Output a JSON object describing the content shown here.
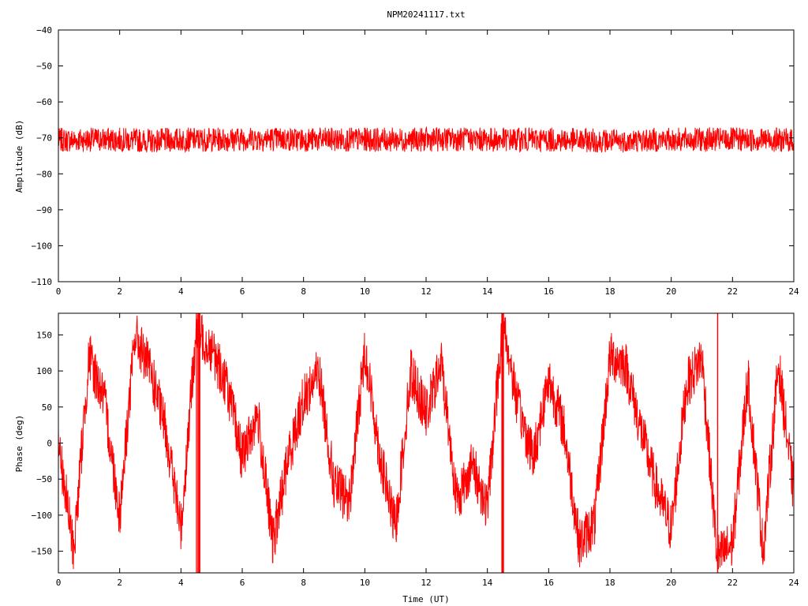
{
  "chart_data": [
    {
      "type": "line",
      "title": "NPM20241117.txt",
      "xlabel": "",
      "ylabel": "Amplitude (dB)",
      "xlim": [
        0,
        24
      ],
      "ylim": [
        -110,
        -40
      ],
      "xticks": [
        0,
        2,
        4,
        6,
        8,
        10,
        12,
        14,
        16,
        18,
        20,
        22,
        24
      ],
      "yticks": [
        -110,
        -100,
        -90,
        -80,
        -70,
        -60,
        -50,
        -40
      ],
      "xtick_labels": [
        "0",
        "2",
        "4",
        "6",
        "8",
        "10",
        "12",
        "14",
        "16",
        "18",
        "20",
        "22",
        "24"
      ],
      "ytick_labels": [
        "−110",
        "−100",
        "−90",
        "−80",
        "−70",
        "−60",
        "−50",
        "−40"
      ],
      "grid": false,
      "color": "#ff0000",
      "series": [
        {
          "x": [
            0,
            1,
            2,
            3,
            4,
            5,
            6,
            7,
            8,
            9,
            10,
            11,
            12,
            13,
            14,
            15,
            16,
            17,
            18,
            19,
            20,
            21,
            22,
            23,
            24
          ],
          "y": [
            -71,
            -70.5,
            -70.5,
            -71.5,
            -70.5,
            -70.5,
            -70,
            -70,
            -70.5,
            -70.5,
            -70.5,
            -70.5,
            -70.5,
            -70,
            -70.5,
            -70.5,
            -70.5,
            -71,
            -71.5,
            -71,
            -70.5,
            -70.5,
            -70.5,
            -70.5,
            -71
          ],
          "noise_band": [
            -75,
            -66
          ]
        }
      ]
    },
    {
      "type": "line",
      "title": "",
      "xlabel": "Time (UT)",
      "ylabel": "Phase (deg)",
      "xlim": [
        0,
        24
      ],
      "ylim": [
        -180,
        180
      ],
      "xticks": [
        0,
        2,
        4,
        6,
        8,
        10,
        12,
        14,
        16,
        18,
        20,
        22,
        24
      ],
      "yticks": [
        -150,
        -100,
        -50,
        0,
        50,
        100,
        150
      ],
      "xtick_labels": [
        "0",
        "2",
        "4",
        "6",
        "8",
        "10",
        "12",
        "14",
        "16",
        "18",
        "20",
        "22",
        "24"
      ],
      "ytick_labels": [
        "−150",
        "−100",
        "−50",
        "0",
        "50",
        "100",
        "150"
      ],
      "grid": false,
      "color": "#ff0000",
      "series": [
        {
          "wrapped": true,
          "x": [
            0,
            0.5,
            1,
            1.5,
            2,
            2.5,
            3,
            3.5,
            4,
            4.5,
            5,
            5.5,
            6,
            6.5,
            7,
            7.5,
            8,
            8.5,
            9,
            9.5,
            10,
            10.5,
            11,
            11.5,
            12,
            12.5,
            13,
            13.5,
            14,
            14.5,
            15,
            15.5,
            16,
            16.5,
            17,
            17.5,
            18,
            18.5,
            19,
            19.5,
            20,
            20.5,
            21,
            21.5,
            22,
            22.5,
            23,
            23.5,
            24
          ],
          "y": [
            0,
            -150,
            120,
            60,
            -100,
            150,
            100,
            20,
            -120,
            160,
            130,
            80,
            -20,
            40,
            -140,
            -20,
            60,
            100,
            -60,
            -80,
            130,
            -20,
            -120,
            100,
            40,
            110,
            -80,
            -30,
            -90,
            170,
            50,
            -20,
            90,
            20,
            -140,
            -110,
            120,
            110,
            20,
            -60,
            -120,
            80,
            120,
            -160,
            -140,
            90,
            -150,
            110,
            -70
          ]
        }
      ]
    }
  ]
}
